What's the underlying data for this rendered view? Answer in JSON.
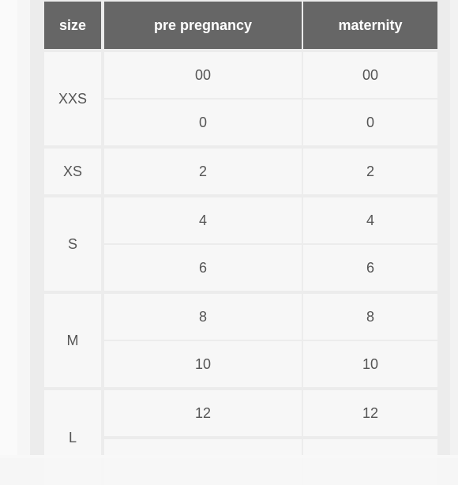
{
  "table": {
    "headers": [
      "size",
      "pre pregnancy",
      "maternity"
    ],
    "rows": [
      {
        "size": "XXS",
        "values": [
          [
            "00",
            "00"
          ],
          [
            "0",
            "0"
          ]
        ]
      },
      {
        "size": "XS",
        "values": [
          [
            "2",
            "2"
          ]
        ]
      },
      {
        "size": "S",
        "values": [
          [
            "4",
            "4"
          ],
          [
            "6",
            "6"
          ]
        ]
      },
      {
        "size": "M",
        "values": [
          [
            "8",
            "8"
          ],
          [
            "10",
            "10"
          ]
        ]
      },
      {
        "size": "L",
        "values": [
          [
            "12",
            "12"
          ]
        ]
      }
    ]
  }
}
